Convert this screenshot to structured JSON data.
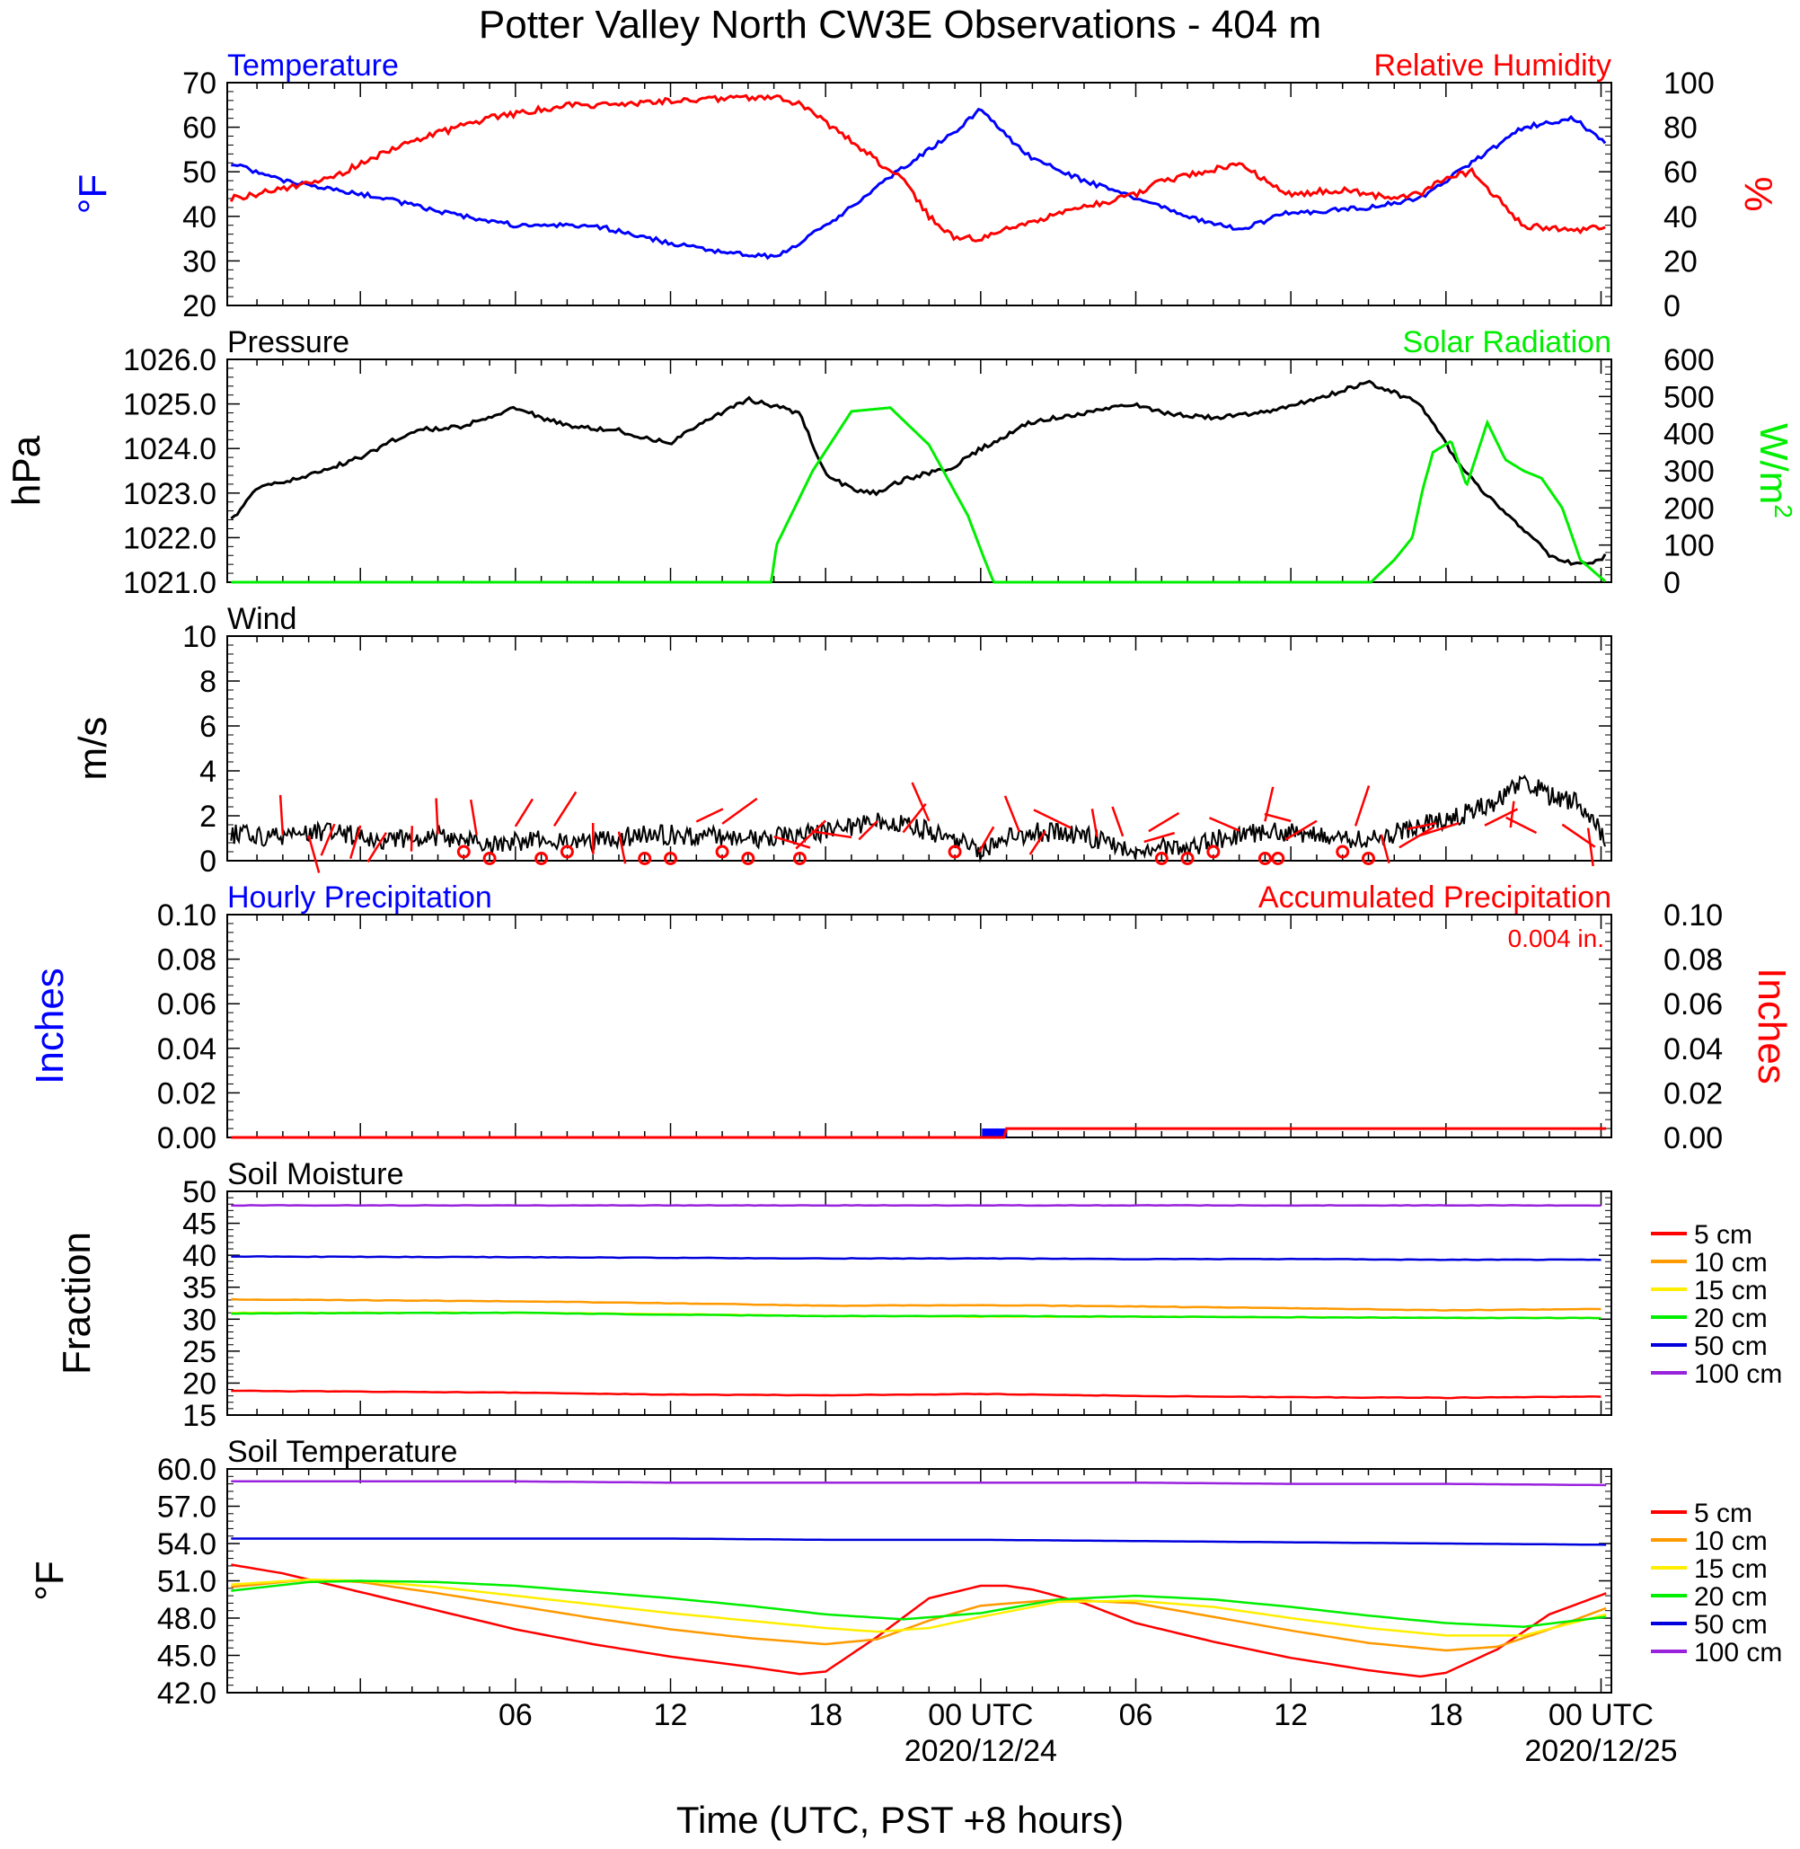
{
  "title": "Potter Valley North CW3E Observations - 404 m",
  "xlabel": "Time (UTC, PST +8 hours)",
  "x_ticks": [
    {
      "label": "06",
      "hour": 6,
      "date": ""
    },
    {
      "label": "12",
      "hour": 12,
      "date": ""
    },
    {
      "label": "18",
      "hour": 18,
      "date": ""
    },
    {
      "label": "00 UTC",
      "hour": 24,
      "date": "2020/12/24"
    },
    {
      "label": "06",
      "hour": 30,
      "date": ""
    },
    {
      "label": "12",
      "hour": 36,
      "date": ""
    },
    {
      "label": "18",
      "hour": 42,
      "date": ""
    },
    {
      "label": "00 UTC",
      "hour": 48,
      "date": "2020/12/25"
    }
  ],
  "colors": {
    "temperature": "#0000ff",
    "humidity": "#ff0000",
    "pressure": "#000000",
    "solar": "#00ee00",
    "wind": "#000000",
    "wind_barb": "#ff0000",
    "hourly_precip": "#0000ff",
    "accum_precip": "#ff0000"
  },
  "panels": {
    "temp_rh": {
      "left_title": "Temperature",
      "right_title": "Relative Humidity",
      "left_unit": "°F",
      "right_unit": "%",
      "left_ticks": [
        "70",
        "60",
        "50",
        "40",
        "30",
        "20"
      ],
      "right_ticks": [
        "100",
        "80",
        "60",
        "40",
        "20",
        "0"
      ]
    },
    "pressure_solar": {
      "left_title": "Pressure",
      "right_title": "Solar Radiation",
      "left_unit": "hPa",
      "right_unit": "W/m",
      "right_unit_sup": "2",
      "left_ticks": [
        "1026.0",
        "1025.0",
        "1024.0",
        "1023.0",
        "1022.0",
        "1021.0"
      ],
      "right_ticks": [
        "600",
        "500",
        "400",
        "300",
        "200",
        "100",
        "0"
      ]
    },
    "wind": {
      "left_title": "Wind",
      "left_unit": "m/s",
      "left_ticks": [
        "10",
        "8",
        "6",
        "4",
        "2",
        "0"
      ]
    },
    "precip": {
      "left_title": "Hourly Precipitation",
      "right_title": "Accumulated Precipitation",
      "total_label": "0.004 in.",
      "left_unit": "Inches",
      "right_unit": "Inches",
      "left_ticks": [
        "0.10",
        "0.08",
        "0.06",
        "0.04",
        "0.02",
        "0.00"
      ],
      "right_ticks": [
        "0.10",
        "0.08",
        "0.06",
        "0.04",
        "0.02",
        "0.00"
      ]
    },
    "soil_moisture": {
      "left_title": "Soil Moisture",
      "left_unit": "Fraction",
      "left_ticks": [
        "50",
        "45",
        "40",
        "35",
        "30",
        "25",
        "20",
        "15"
      ]
    },
    "soil_temp": {
      "left_title": "Soil Temperature",
      "left_unit": "°F",
      "left_ticks": [
        "60.0",
        "57.0",
        "54.0",
        "51.0",
        "48.0",
        "45.0",
        "42.0"
      ]
    }
  },
  "soil_legend": [
    {
      "label": "5 cm",
      "color": "#ff0000"
    },
    {
      "label": "10 cm",
      "color": "#ff9900"
    },
    {
      "label": "15 cm",
      "color": "#ffee00"
    },
    {
      "label": "20 cm",
      "color": "#00ee00"
    },
    {
      "label": "50 cm",
      "color": "#0000dd"
    },
    {
      "label": "100 cm",
      "color": "#9922dd"
    }
  ],
  "chart_data": [
    {
      "type": "line",
      "title": "Temperature / Relative Humidity",
      "x_unit": "hours since 2020-12-23 00 UTC",
      "series": [
        {
          "name": "Temperature",
          "axis": "left",
          "unit": "°F",
          "color": "#0000ff",
          "x": [
            -5,
            -3,
            -1,
            1,
            3,
            6,
            9,
            12,
            14,
            16,
            17,
            19,
            21,
            23,
            24,
            25,
            26,
            28,
            30,
            32,
            34,
            35,
            36,
            37,
            39,
            41,
            43,
            45,
            47,
            48.2
          ],
          "y": [
            52,
            48,
            46,
            44,
            41,
            38,
            38,
            34,
            32,
            31,
            34,
            42,
            51,
            59,
            64,
            58,
            53,
            48,
            44,
            40,
            37,
            39,
            41,
            41,
            42,
            44,
            52,
            60,
            62,
            56
          ]
        },
        {
          "name": "Relative Humidity",
          "axis": "right",
          "unit": "%",
          "color": "#ff0000",
          "x": [
            -5,
            -3,
            -1,
            2,
            5,
            8,
            10,
            12,
            14,
            16,
            17,
            19,
            21,
            22,
            23,
            24,
            25,
            26,
            28,
            30,
            31,
            32,
            34,
            35,
            36,
            38,
            40,
            41,
            42,
            43,
            45,
            47,
            48.2
          ],
          "y": [
            48,
            52,
            58,
            74,
            84,
            90,
            90,
            92,
            93,
            94,
            90,
            74,
            56,
            40,
            30,
            30,
            34,
            38,
            44,
            50,
            56,
            58,
            64,
            56,
            50,
            52,
            48,
            50,
            58,
            60,
            36,
            33,
            36
          ]
        }
      ]
    },
    {
      "type": "line",
      "title": "Pressure / Solar Radiation",
      "x_unit": "hours since 2020-12-23 00 UTC",
      "series": [
        {
          "name": "Pressure",
          "axis": "left",
          "unit": "hPa",
          "color": "#000000",
          "x": [
            -5,
            -4,
            -2,
            0,
            2,
            4,
            6,
            8,
            10,
            12,
            13,
            15,
            17,
            18,
            19,
            20,
            21,
            23,
            24,
            26,
            28,
            30,
            31,
            33,
            35,
            37,
            39,
            41,
            42,
            43,
            44,
            45,
            46,
            47,
            48,
            48.2
          ],
          "y": [
            1022.4,
            1023.1,
            1023.4,
            1023.8,
            1024.4,
            1024.5,
            1024.9,
            1024.5,
            1024.4,
            1024.1,
            1024.5,
            1025.1,
            1024.8,
            1023.4,
            1023.1,
            1023.0,
            1023.3,
            1023.6,
            1024.0,
            1024.6,
            1024.8,
            1025.0,
            1024.8,
            1024.7,
            1024.8,
            1025.1,
            1025.5,
            1025.0,
            1024.1,
            1023.3,
            1022.7,
            1022.2,
            1021.6,
            1021.4,
            1021.5,
            1021.7
          ]
        },
        {
          "name": "Solar Radiation",
          "axis": "right",
          "unit": "W/m2",
          "color": "#00ee00",
          "x": [
            -5,
            15.9,
            16.1,
            17.5,
            19,
            20.5,
            22,
            23.5,
            24.1,
            24.5,
            39.1,
            40,
            40.7,
            41.1,
            41.5,
            42.2,
            42.8,
            43.6,
            44.3,
            45,
            45.7,
            46.5,
            47.2,
            48.2
          ],
          "y": [
            0,
            0,
            100,
            300,
            460,
            470,
            370,
            180,
            70,
            0,
            0,
            60,
            120,
            250,
            350,
            380,
            260,
            430,
            330,
            300,
            280,
            200,
            60,
            0
          ]
        }
      ]
    },
    {
      "type": "line",
      "title": "Wind",
      "x_unit": "hours since 2020-12-23 00 UTC",
      "y_unit": "m/s",
      "series": [
        {
          "name": "Wind speed",
          "color": "#000000",
          "x": [
            -5,
            -3,
            -1,
            1,
            3,
            5,
            7,
            9,
            11,
            13,
            15,
            17,
            19,
            20,
            21,
            22,
            23,
            24,
            25,
            26,
            28,
            30,
            32,
            34,
            36,
            38,
            40,
            41,
            42,
            43,
            44,
            45,
            46,
            47,
            48.2
          ],
          "y": [
            1.2,
            1.0,
            1.3,
            0.9,
            1.1,
            0.7,
            1.0,
            0.8,
            1.2,
            1.1,
            1.0,
            1.1,
            1.5,
            1.8,
            1.7,
            1.3,
            1.0,
            0.4,
            1.0,
            1.3,
            1.1,
            0.5,
            0.6,
            1.2,
            1.3,
            0.9,
            1.2,
            1.6,
            1.8,
            2.2,
            2.6,
            3.6,
            2.9,
            2.6,
            1.0
          ]
        }
      ],
      "calm_hours": [
        4,
        5,
        7,
        8,
        11,
        12,
        14,
        15,
        17,
        23,
        31,
        32,
        33,
        35,
        35.5,
        38,
        39
      ],
      "barb_hours": [
        -3,
        -2,
        -1,
        0,
        1,
        2,
        3,
        4.5,
        6,
        7.5,
        9,
        10,
        13,
        14,
        16,
        18,
        19,
        20,
        21,
        22,
        24.5,
        25.5,
        26.5,
        27.5,
        28.5,
        29.5,
        30.5,
        31.5,
        34,
        35,
        36,
        37,
        38.5,
        39.5,
        40.5,
        41.5,
        42.5,
        43.5,
        44.5,
        45.5,
        46.5,
        47.5
      ]
    },
    {
      "type": "bar",
      "title": "Hourly Precipitation / Accumulated Precipitation",
      "x_unit": "hours since 2020-12-23 00 UTC",
      "y_unit": "in",
      "ylim": [
        0,
        0.1
      ],
      "series": [
        {
          "name": "Hourly Precipitation",
          "color": "#0000ff",
          "x": [
            25
          ],
          "values": [
            0.004
          ]
        },
        {
          "name": "Accumulated Precipitation",
          "color": "#ff0000",
          "x": [
            -5,
            24.9,
            25,
            48.2
          ],
          "values": [
            0,
            0,
            0.004,
            0.004
          ]
        }
      ]
    },
    {
      "type": "line",
      "title": "Soil Moisture",
      "x_unit": "hours since 2020-12-23 00 UTC",
      "y_unit": "fraction (%)",
      "ylim": [
        15,
        50
      ],
      "series": [
        {
          "name": "5 cm",
          "color": "#ff0000",
          "x": [
            -5,
            6,
            12,
            18,
            24,
            30,
            36,
            42,
            48.2
          ],
          "y": [
            18.8,
            18.5,
            18.2,
            18.1,
            18.3,
            18.0,
            17.8,
            17.7,
            17.9
          ]
        },
        {
          "name": "10 cm",
          "color": "#ff9900",
          "x": [
            -5,
            6,
            12,
            18,
            24,
            30,
            36,
            42,
            48.2
          ],
          "y": [
            33.1,
            32.8,
            32.5,
            32.1,
            32.2,
            32.0,
            31.7,
            31.4,
            31.6
          ]
        },
        {
          "name": "15 cm",
          "color": "#ffee00",
          "x": [
            -5,
            6,
            12,
            18,
            24,
            30,
            36,
            42,
            48.2
          ],
          "y": [
            31.0,
            31.0,
            30.8,
            30.5,
            30.4,
            30.4,
            30.3,
            30.2,
            30.2
          ]
        },
        {
          "name": "20 cm",
          "color": "#00ee00",
          "x": [
            -5,
            6,
            12,
            18,
            24,
            30,
            36,
            42,
            48.2
          ],
          "y": [
            30.9,
            31.0,
            30.7,
            30.5,
            30.5,
            30.4,
            30.3,
            30.2,
            30.2
          ]
        },
        {
          "name": "50 cm",
          "color": "#0000dd",
          "x": [
            -5,
            6,
            12,
            18,
            24,
            30,
            36,
            42,
            48.2
          ],
          "y": [
            39.8,
            39.7,
            39.6,
            39.5,
            39.5,
            39.4,
            39.4,
            39.3,
            39.3
          ]
        },
        {
          "name": "100 cm",
          "color": "#9922dd",
          "x": [
            -5,
            6,
            12,
            18,
            24,
            30,
            36,
            42,
            48.2
          ],
          "y": [
            47.8,
            47.8,
            47.8,
            47.8,
            47.8,
            47.8,
            47.8,
            47.8,
            47.8
          ]
        }
      ]
    },
    {
      "type": "line",
      "title": "Soil Temperature",
      "x_unit": "hours since 2020-12-23 00 UTC",
      "y_unit": "°F",
      "ylim": [
        42,
        60
      ],
      "series": [
        {
          "name": "5 cm",
          "color": "#ff0000",
          "x": [
            -5,
            -3,
            0,
            3,
            6,
            9,
            12,
            15,
            17,
            18,
            20,
            22,
            24,
            25,
            26,
            28,
            30,
            33,
            36,
            39,
            41,
            42,
            44,
            46,
            48.2
          ],
          "y": [
            52.3,
            51.6,
            50.1,
            48.6,
            47.1,
            45.9,
            44.9,
            44.1,
            43.5,
            43.7,
            46.5,
            49.6,
            50.6,
            50.6,
            50.3,
            49.2,
            47.6,
            46.1,
            44.8,
            43.8,
            43.3,
            43.6,
            45.5,
            48.3,
            50.0
          ]
        },
        {
          "name": "10 cm",
          "color": "#ff9900",
          "x": [
            -5,
            -2,
            0,
            3,
            6,
            9,
            12,
            15,
            18,
            20,
            22,
            24,
            27,
            30,
            33,
            36,
            39,
            42,
            44,
            46,
            48.2
          ],
          "y": [
            50.5,
            51.1,
            50.9,
            50.0,
            49.0,
            48.0,
            47.1,
            46.4,
            45.9,
            46.3,
            47.8,
            49.0,
            49.5,
            49.2,
            48.1,
            47.0,
            46.0,
            45.4,
            45.7,
            47.1,
            48.8
          ]
        },
        {
          "name": "15 cm",
          "color": "#ffee00",
          "x": [
            -5,
            -2,
            0,
            3,
            6,
            9,
            12,
            15,
            18,
            20,
            22,
            24,
            27,
            30,
            33,
            36,
            39,
            42,
            45,
            48.2
          ],
          "y": [
            50.7,
            51.1,
            51.0,
            50.5,
            49.8,
            49.1,
            48.4,
            47.8,
            47.2,
            46.9,
            47.2,
            48.1,
            49.3,
            49.4,
            48.9,
            48.0,
            47.2,
            46.6,
            46.6,
            48.3
          ]
        },
        {
          "name": "20 cm",
          "color": "#00ee00",
          "x": [
            -5,
            -2,
            0,
            3,
            6,
            9,
            12,
            15,
            18,
            21,
            24,
            27,
            30,
            33,
            36,
            39,
            42,
            45,
            48.2
          ],
          "y": [
            50.2,
            50.9,
            51.0,
            50.9,
            50.6,
            50.1,
            49.6,
            49.0,
            48.3,
            47.9,
            48.4,
            49.5,
            49.8,
            49.5,
            48.9,
            48.2,
            47.6,
            47.3,
            48.1
          ]
        },
        {
          "name": "50 cm",
          "color": "#0000dd",
          "x": [
            -5,
            6,
            12,
            18,
            24,
            30,
            36,
            42,
            48.2
          ],
          "y": [
            54.4,
            54.4,
            54.4,
            54.3,
            54.3,
            54.2,
            54.1,
            54.0,
            53.9
          ]
        },
        {
          "name": "100 cm",
          "color": "#9922dd",
          "x": [
            -5,
            6,
            12,
            18,
            24,
            30,
            36,
            42,
            48.2
          ],
          "y": [
            59.0,
            59.0,
            58.9,
            58.9,
            58.9,
            58.9,
            58.8,
            58.8,
            58.7
          ]
        }
      ]
    }
  ]
}
